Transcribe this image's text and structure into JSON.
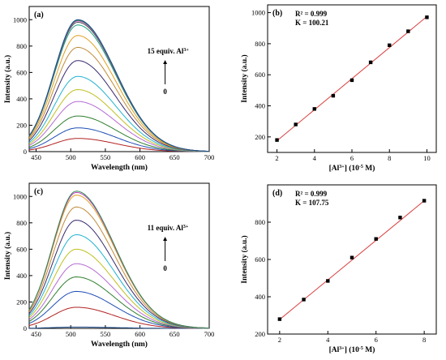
{
  "chart_data": [
    {
      "type": "line",
      "panel": "(a)",
      "xlabel": "Wavelength (nm)",
      "ylabel": "Intensity (a.u.)",
      "xlim": [
        440,
        700
      ],
      "ylim": [
        0,
        1100
      ],
      "xticks": [
        450,
        500,
        550,
        600,
        650,
        700
      ],
      "yticks": [
        0,
        200,
        400,
        600,
        800,
        1000
      ],
      "peak_x": 510,
      "annotation_top": "15 equiv. Al3+",
      "annotation_bottom": "0",
      "peaks": [
        100,
        180,
        270,
        380,
        470,
        570,
        690,
        790,
        880,
        960,
        980,
        990,
        995,
        1000
      ],
      "colors": [
        "#b22222",
        "#1f4eb4",
        "#2f7f2f",
        "#b56bd4",
        "#bfbf1f",
        "#20b2d0",
        "#3a2a6f",
        "#c08a3a",
        "#e0a020",
        "#20a080",
        "#555555",
        "#c040c0",
        "#2e8b57",
        "#1e4e8e"
      ]
    },
    {
      "type": "scatter",
      "panel": "(b)",
      "xlabel": "[Al3+] (10-5 M)",
      "ylabel": "Intensity (a.u.)",
      "xlim": [
        1.5,
        10.5
      ],
      "ylim": [
        100,
        1050
      ],
      "xticks": [
        2,
        4,
        6,
        8,
        10
      ],
      "yticks": [
        200,
        400,
        600,
        800,
        1000
      ],
      "x": [
        2,
        3,
        4,
        5,
        6,
        7,
        8,
        9,
        10
      ],
      "y": [
        180,
        280,
        380,
        465,
        565,
        680,
        790,
        880,
        970
      ],
      "fit": [
        [
          2,
          175
        ],
        [
          10,
          975
        ]
      ],
      "r2": "R² = 0.999",
      "k": "K = 100.21"
    },
    {
      "type": "line",
      "panel": "(c)",
      "xlabel": "Wavelength (nm)",
      "ylabel": "Intensity (a.u.)",
      "xlim": [
        440,
        700
      ],
      "ylim": [
        0,
        1100
      ],
      "xticks": [
        450,
        500,
        550,
        600,
        650,
        700
      ],
      "yticks": [
        0,
        200,
        400,
        600,
        800,
        1000
      ],
      "peak_x": 508,
      "annotation_top": "11 equiv. Al3+",
      "annotation_bottom": "0",
      "peaks": [
        10,
        160,
        280,
        390,
        490,
        600,
        710,
        820,
        920,
        1010,
        1030,
        1040
      ],
      "colors": [
        "#1e4e8e",
        "#b22222",
        "#1f4eb4",
        "#2f7f2f",
        "#b56bd4",
        "#bfbf1f",
        "#20b2d0",
        "#3a2a6f",
        "#c08a3a",
        "#e0a020",
        "#c040c0",
        "#2e8b57"
      ]
    },
    {
      "type": "scatter",
      "panel": "(d)",
      "xlabel": "[Al3+] (10-5 M)",
      "ylabel": "Intensity (a.u.)",
      "xlim": [
        1.5,
        8.5
      ],
      "ylim": [
        200,
        1000
      ],
      "xticks": [
        2,
        4,
        6,
        8
      ],
      "yticks": [
        200,
        400,
        600,
        800
      ],
      "x": [
        2,
        3,
        4,
        5,
        6,
        7,
        8
      ],
      "y": [
        280,
        385,
        485,
        610,
        710,
        825,
        915
      ],
      "fit": [
        [
          2,
          278
        ],
        [
          8,
          915
        ]
      ],
      "r2": "R² = 0.999",
      "k": "K = 107.75"
    }
  ]
}
